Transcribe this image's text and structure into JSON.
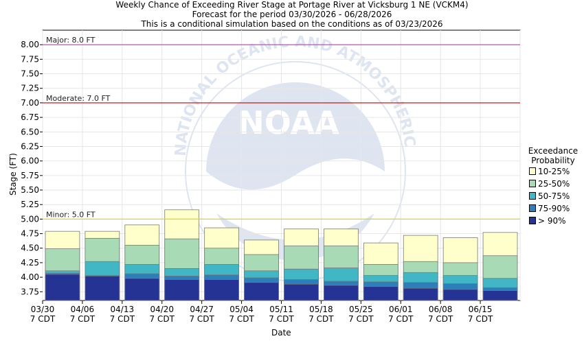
{
  "chart_data": {
    "type": "bar",
    "title_lines": [
      "Weekly Chance of Exceeding River Stage at Portage River at Vicksburg 1 NE (VCKM4)",
      "Forecast for the period 03/30/2026 - 06/28/2026",
      "This is a conditional simulation based on the conditions as of 03/23/2026"
    ],
    "xlabel": "Date",
    "ylabel": "Stage (FT)",
    "ylim": [
      3.6,
      8.25
    ],
    "yticks": [
      "3.75",
      "4.00",
      "4.25",
      "4.50",
      "4.75",
      "5.00",
      "5.25",
      "5.50",
      "5.75",
      "6.00",
      "6.25",
      "6.50",
      "6.75",
      "7.00",
      "7.25",
      "7.50",
      "7.75",
      "8.00"
    ],
    "xticks": [
      {
        "date": "03/30",
        "tz": "7 CDT"
      },
      {
        "date": "04/06",
        "tz": "7 CDT"
      },
      {
        "date": "04/13",
        "tz": "7 CDT"
      },
      {
        "date": "04/20",
        "tz": "7 CDT"
      },
      {
        "date": "04/27",
        "tz": "7 CDT"
      },
      {
        "date": "05/04",
        "tz": "7 CDT"
      },
      {
        "date": "05/11",
        "tz": "7 CDT"
      },
      {
        "date": "05/18",
        "tz": "7 CDT"
      },
      {
        "date": "05/25",
        "tz": "7 CDT"
      },
      {
        "date": "06/01",
        "tz": "7 CDT"
      },
      {
        "date": "06/08",
        "tz": "7 CDT"
      },
      {
        "date": "06/15",
        "tz": "7 CDT"
      }
    ],
    "thresholds": [
      {
        "label": "Major: 8.0 FT",
        "value": 8.0,
        "color": "#cc33cc"
      },
      {
        "label": "Moderate: 7.0 FT",
        "value": 7.0,
        "color": "#cc0000"
      },
      {
        "label": "Minor: 5.0 FT",
        "value": 5.0,
        "color": "#dddd00"
      }
    ],
    "legend_title": [
      "Exceedance",
      "Probability"
    ],
    "series": [
      {
        "name": "10-25%",
        "color": "#ffffcc",
        "values": [
          4.79,
          4.79,
          4.9,
          5.16,
          4.85,
          4.64,
          4.83,
          4.83,
          4.59,
          4.72,
          4.68,
          4.77
        ]
      },
      {
        "name": "25-50%",
        "color": "#a8dab5",
        "values": [
          4.49,
          4.67,
          4.55,
          4.66,
          4.5,
          4.39,
          4.54,
          4.54,
          4.22,
          4.27,
          4.25,
          4.37
        ]
      },
      {
        "name": "50-75%",
        "color": "#41b6c4",
        "values": [
          4.11,
          4.27,
          4.22,
          4.15,
          4.22,
          4.11,
          4.14,
          4.16,
          4.03,
          4.08,
          4.03,
          3.98
        ]
      },
      {
        "name": "75-90%",
        "color": "#2c7fb8",
        "values": [
          4.07,
          4.03,
          4.06,
          4.02,
          4.04,
          3.99,
          3.96,
          3.93,
          3.92,
          3.91,
          3.89,
          3.82
        ]
      },
      {
        "name": "> 90%",
        "color": "#253494",
        "values": [
          4.05,
          4.02,
          3.98,
          3.96,
          3.96,
          3.91,
          3.88,
          3.86,
          3.84,
          3.81,
          3.79,
          3.77
        ]
      }
    ],
    "grid": true,
    "legend_position": "right"
  },
  "watermark": {
    "logo_text": "NOAA",
    "ring_text": "NATIONAL OCEANIC AND ATMOSPHERIC ADMINISTRATION"
  }
}
